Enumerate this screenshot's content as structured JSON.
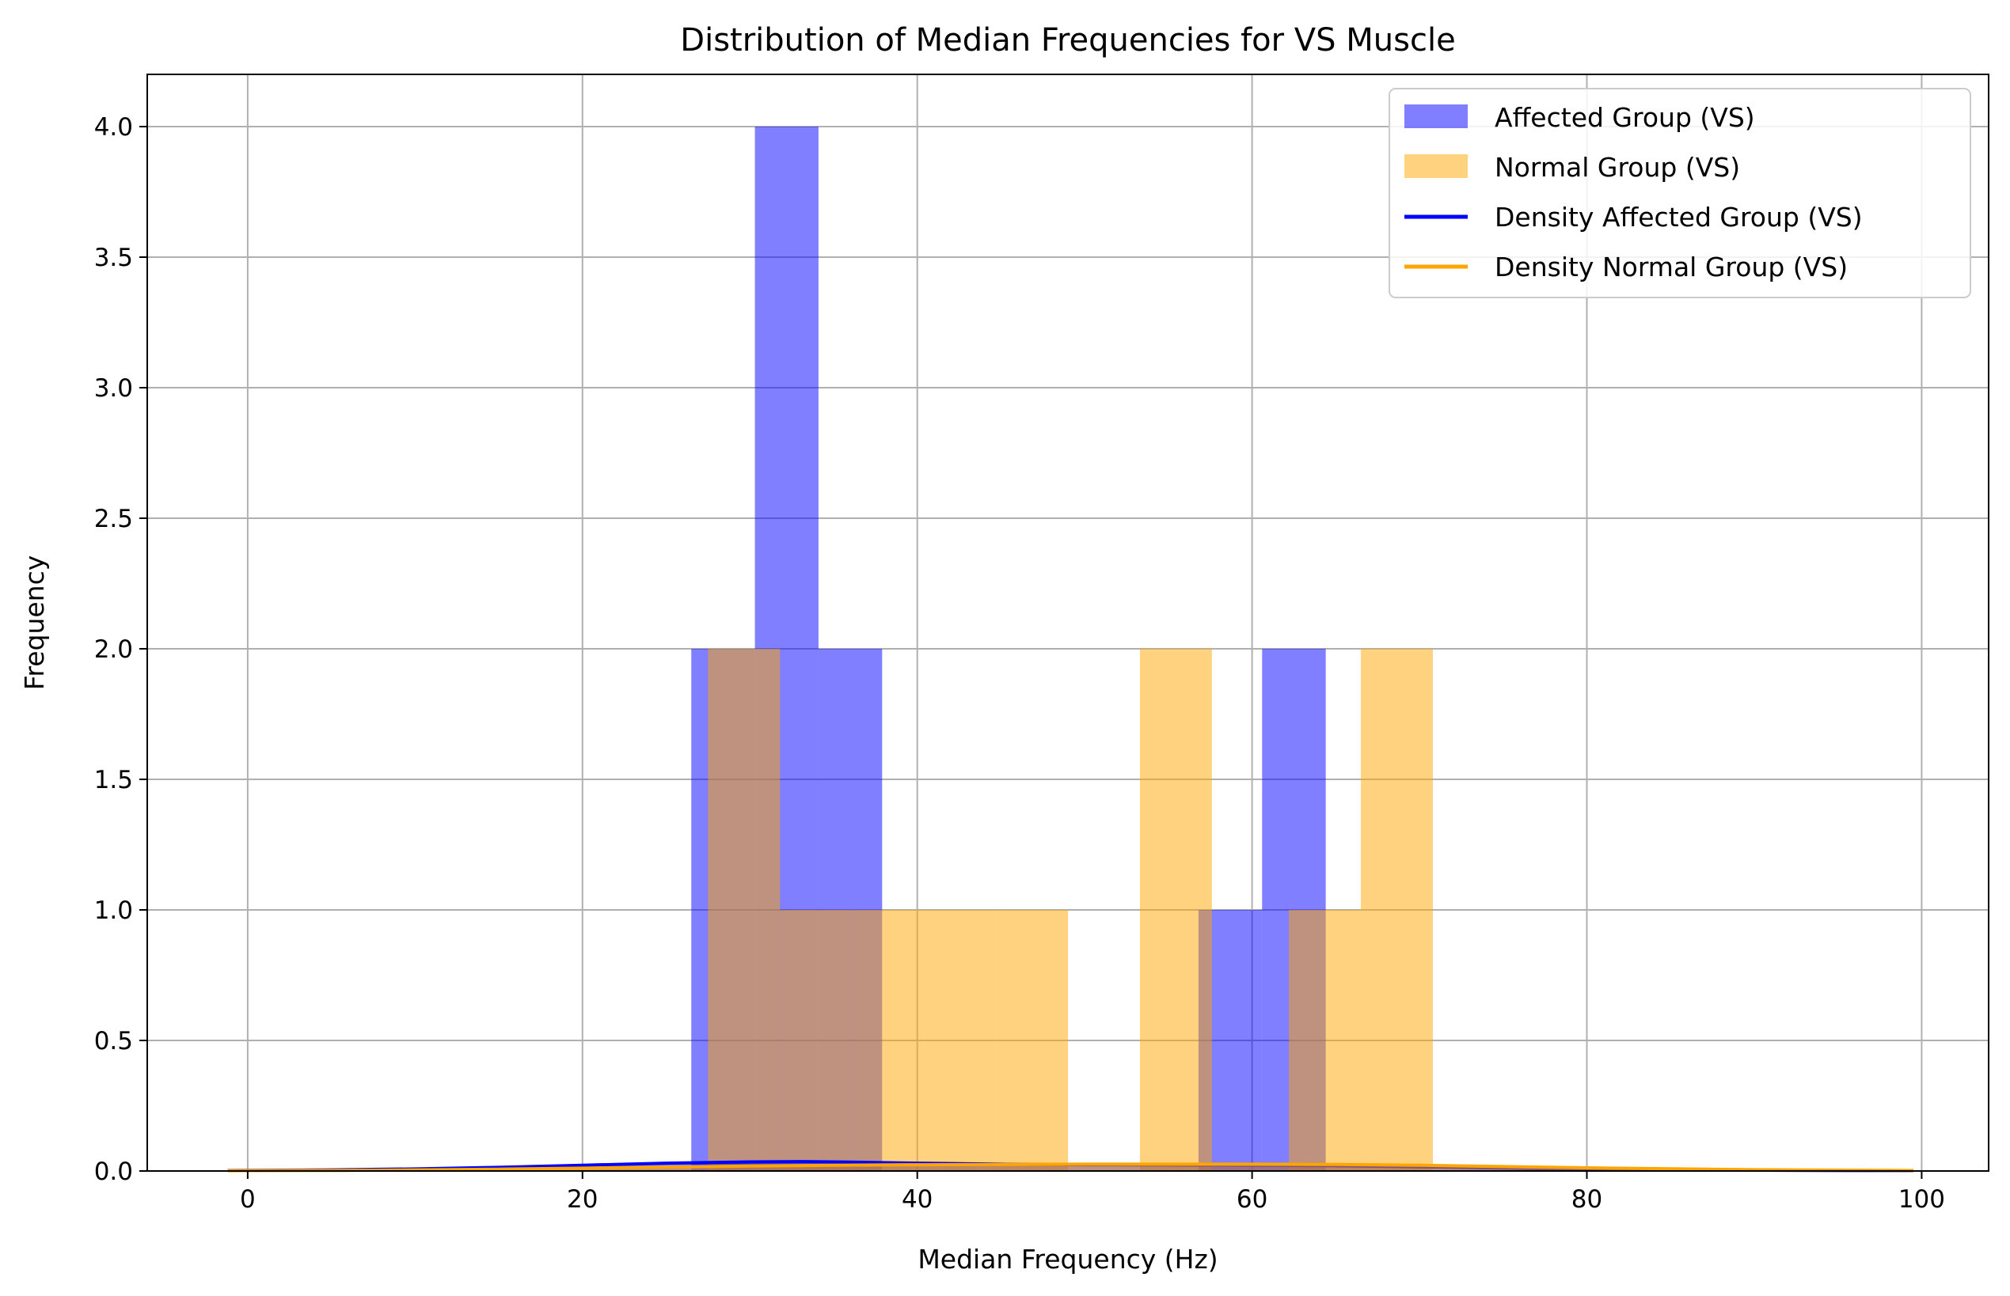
{
  "chart_data": {
    "type": "bar",
    "title": "Distribution of Median Frequencies for VS Muscle",
    "xlabel": "Median Frequency (Hz)",
    "ylabel": "Frequency",
    "xlim": [
      -6,
      104
    ],
    "ylim": [
      0,
      4.2
    ],
    "xticks": [
      "0",
      "20",
      "40",
      "60",
      "80",
      "100"
    ],
    "yticks": [
      "0.0",
      "0.5",
      "1.0",
      "1.5",
      "2.0",
      "2.5",
      "3.0",
      "3.5",
      "4.0"
    ],
    "grid": true,
    "legend_position": "top-right",
    "histograms": [
      {
        "name": "Affected Group (VS)",
        "color": "#0000ff",
        "alpha": 0.5,
        "bins": [
          {
            "x0": 26.5,
            "x1": 30.3,
            "count": 2
          },
          {
            "x0": 30.3,
            "x1": 34.1,
            "count": 4
          },
          {
            "x0": 34.1,
            "x1": 37.9,
            "count": 2
          },
          {
            "x0": 56.8,
            "x1": 60.6,
            "count": 1
          },
          {
            "x0": 60.6,
            "x1": 64.4,
            "count": 2
          }
        ]
      },
      {
        "name": "Normal Group (VS)",
        "color": "#ffa500",
        "alpha": 0.5,
        "bins": [
          {
            "x0": 27.5,
            "x1": 31.8,
            "count": 2
          },
          {
            "x0": 31.8,
            "x1": 36.1,
            "count": 1
          },
          {
            "x0": 36.1,
            "x1": 40.4,
            "count": 1
          },
          {
            "x0": 40.4,
            "x1": 44.7,
            "count": 1
          },
          {
            "x0": 44.7,
            "x1": 49.0,
            "count": 1
          },
          {
            "x0": 53.3,
            "x1": 57.6,
            "count": 2
          },
          {
            "x0": 62.2,
            "x1": 66.5,
            "count": 1
          },
          {
            "x0": 66.5,
            "x1": 70.8,
            "count": 2
          }
        ]
      }
    ],
    "density": [
      {
        "name": "Density Affected Group (VS)",
        "color": "#0000ff",
        "x": [
          -1.2,
          5,
          10,
          15,
          20,
          25,
          30,
          33,
          36,
          40,
          45,
          50,
          55,
          60,
          65,
          70,
          75,
          80,
          90,
          99.5
        ],
        "y": [
          0.002,
          0.004,
          0.008,
          0.014,
          0.022,
          0.03,
          0.035,
          0.036,
          0.034,
          0.03,
          0.026,
          0.024,
          0.023,
          0.022,
          0.02,
          0.016,
          0.011,
          0.007,
          0.003,
          0.001
        ]
      },
      {
        "name": "Density Normal Group (VS)",
        "color": "#ffa500",
        "x": [
          -1.2,
          5,
          10,
          15,
          20,
          25,
          30,
          35,
          40,
          45,
          50,
          55,
          60,
          65,
          70,
          75,
          80,
          90,
          99.5
        ],
        "y": [
          0.001,
          0.002,
          0.004,
          0.007,
          0.011,
          0.015,
          0.019,
          0.022,
          0.024,
          0.025,
          0.026,
          0.026,
          0.026,
          0.025,
          0.022,
          0.017,
          0.012,
          0.005,
          0.002
        ]
      }
    ]
  }
}
